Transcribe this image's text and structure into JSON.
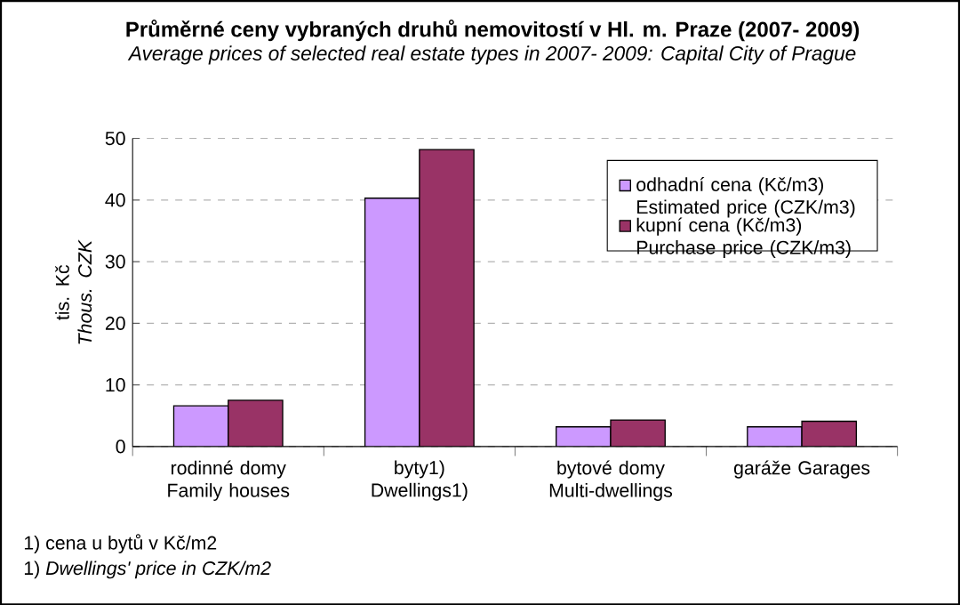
{
  "chart_data": {
    "type": "bar",
    "title": "Průměrné ceny vybraných druhů nemovitostí v Hl. m. Praze (2007- 2009)",
    "subtitle": "Average prices of selected real estate types in 2007- 2009: Capital City of Prague",
    "ylabel": "tis. Kč *Thous. CZK*",
    "categories": [
      "rodinné domy Family houses",
      "byty1) Dwellings1)",
      "bytové domy Multi-dwellings",
      "garáže Garages"
    ],
    "series": [
      {
        "name": "odhadní cena (Kč/m3) Estimated price (CZK/m3)",
        "color": "#cc99ff",
        "values": [
          6.6,
          40.3,
          3.2,
          3.2
        ]
      },
      {
        "name": "kupní cena (Kč/m3) Purchase price (CZK/m3)",
        "color": "#993366",
        "values": [
          7.5,
          48.2,
          4.3,
          4.1
        ]
      }
    ],
    "ylim": [
      0,
      50
    ],
    "yticks": [
      0,
      10,
      20,
      30,
      40,
      50
    ],
    "grid": "y",
    "legend": "top right",
    "annotations": [
      "1) cena u bytů v Kč/m2",
      "1) *Dwellings' price in CZK/m2*"
    ]
  }
}
